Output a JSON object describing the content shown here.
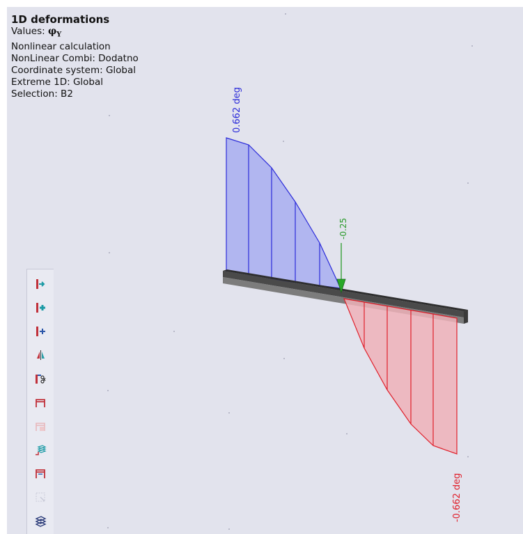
{
  "info": {
    "title": "1D deformations",
    "values_label": "Values: ",
    "values_symbol": "φ",
    "values_subscript": "Y",
    "calc": "Nonlinear calculation",
    "combi": "NonLinear Combi: Dodatno",
    "coord": "Coordinate system: Global",
    "extreme": "Extreme 1D: Global",
    "selection": "Selection: B2"
  },
  "labels": {
    "max": "0.662 deg",
    "min": "-0.662 deg",
    "support": "-0.25"
  },
  "colors": {
    "positive_fill": "#a8aef0",
    "positive_line": "#2b2bd9",
    "negative_fill": "#eeb2b8",
    "negative_line": "#e0202b",
    "support": "#2a9a2a",
    "beam": "#666666",
    "background": "#e2e3ed"
  },
  "toolbar": {
    "icons": [
      "beam-insert-icon",
      "beam-add-icon",
      "beam-add-node-icon",
      "mirror-icon",
      "beam-split-icon",
      "frame-icon",
      "frame-disabled-icon",
      "layers-node-icon",
      "frame-bracket-icon",
      "select-disabled-icon",
      "layers-icon"
    ]
  }
}
